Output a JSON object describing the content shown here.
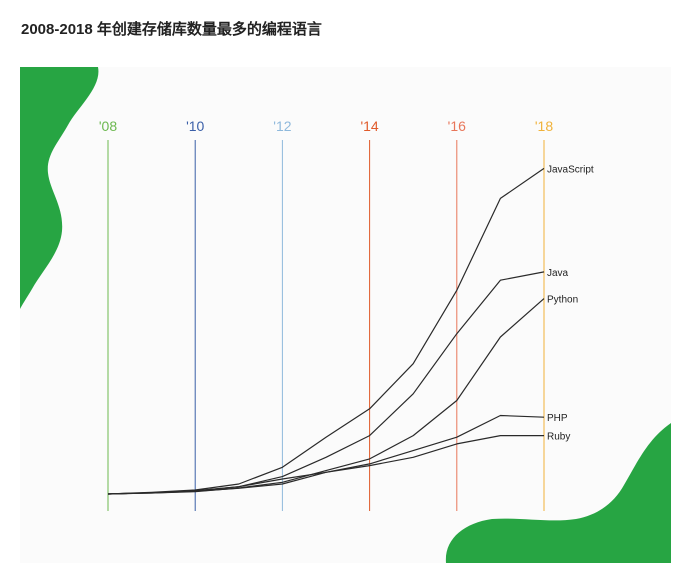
{
  "page": {
    "heading": "2008-2018 年创建存储库数量最多的编程语言"
  },
  "colors": {
    "blob": "#27a543",
    "line": "#2a2a2a",
    "tick_2008": "#6cb84f",
    "tick_2010": "#3a5fa8",
    "tick_2012": "#8fb9dc",
    "tick_2014": "#e05a2a",
    "tick_2016": "#e8765a",
    "tick_2018": "#f0b23a"
  },
  "chart_data": {
    "type": "line",
    "title": "2008-2018 年创建存储库数量最多的编程语言",
    "x": [
      2008,
      2009,
      2010,
      2011,
      2012,
      2013,
      2014,
      2015,
      2016,
      2017,
      2018
    ],
    "x_ticks": [
      {
        "year": 2008,
        "label": "'08",
        "color": "#6cb84f"
      },
      {
        "year": 2010,
        "label": "'10",
        "color": "#3a5fa8"
      },
      {
        "year": 2012,
        "label": "'12",
        "color": "#8fb9dc"
      },
      {
        "year": 2014,
        "label": "'14",
        "color": "#e05a2a"
      },
      {
        "year": 2016,
        "label": "'16",
        "color": "#e8765a"
      },
      {
        "year": 2018,
        "label": "'18",
        "color": "#f0b23a"
      }
    ],
    "xlim": [
      2008,
      2018
    ],
    "ylim": [
      0,
      100
    ],
    "grid": false,
    "series": [
      {
        "name": "JavaScript",
        "values": [
          0,
          0.5,
          1.2,
          3,
          8,
          17,
          25.5,
          39,
          61,
          88.5,
          97.5
        ]
      },
      {
        "name": "Java",
        "values": [
          0,
          0.4,
          1,
          2.2,
          5.2,
          11,
          17.5,
          30,
          48,
          64,
          66.5
        ]
      },
      {
        "name": "Python",
        "values": [
          0,
          0.3,
          0.7,
          1.8,
          3.5,
          7,
          10.5,
          17.5,
          28,
          47,
          58.5
        ]
      },
      {
        "name": "PHP",
        "values": [
          0,
          0.4,
          0.9,
          2.2,
          4.5,
          6.5,
          9,
          13,
          17,
          23.5,
          23
        ]
      },
      {
        "name": "Ruby",
        "values": [
          0,
          0.3,
          0.8,
          1.7,
          3,
          6.5,
          8.5,
          11,
          15,
          17.5,
          17.5
        ]
      }
    ]
  }
}
